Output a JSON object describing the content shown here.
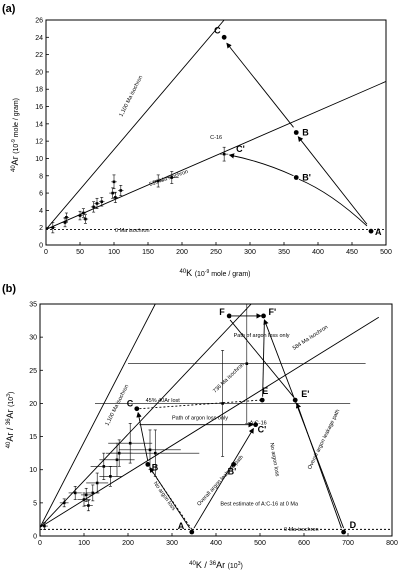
{
  "chart_data": [
    {
      "panel": "(a)",
      "type": "scatter",
      "xlabel_sup": "40",
      "xlabel_main": "K",
      "xlabel_unit": "(10",
      "xlabel_unit_sup": "-9",
      "xlabel_unit_tail": " mole / gram)",
      "ylabel_sup": "40",
      "ylabel_main": "Ar",
      "ylabel_unit": "(10",
      "ylabel_unit_sup": "-9",
      "ylabel_unit_tail": " mole / gram)",
      "xlim": [
        0,
        500
      ],
      "ylim": [
        0,
        26
      ],
      "xticks": [
        0,
        50,
        100,
        150,
        200,
        250,
        300,
        350,
        400,
        450,
        500
      ],
      "yticks": [
        0,
        2,
        4,
        6,
        8,
        10,
        12,
        14,
        16,
        18,
        20,
        22,
        24,
        26
      ],
      "isochrons": [
        {
          "label": "1,100 Ma isochron",
          "x": [
            0,
            262
          ],
          "y": [
            1.8,
            26
          ]
        },
        {
          "label": "516 Ma isochron",
          "x": [
            0,
            500
          ],
          "y": [
            1.8,
            18.9
          ]
        },
        {
          "label": "0 Ma isochron",
          "x": [
            0,
            500
          ],
          "y": [
            1.8,
            1.8
          ]
        }
      ],
      "data_points": [
        {
          "x": 10,
          "y": 2.0,
          "ex": 4,
          "ey": 0.6
        },
        {
          "x": 28,
          "y": 2.6,
          "ex": 4,
          "ey": 0.5
        },
        {
          "x": 30,
          "y": 3.2,
          "ex": 4,
          "ey": 0.5
        },
        {
          "x": 50,
          "y": 3.4,
          "ex": 4,
          "ey": 0.5
        },
        {
          "x": 55,
          "y": 3.7,
          "ex": 4,
          "ey": 0.5
        },
        {
          "x": 58,
          "y": 3.0,
          "ex": 4,
          "ey": 0.5
        },
        {
          "x": 70,
          "y": 4.4,
          "ex": 4,
          "ey": 0.6
        },
        {
          "x": 75,
          "y": 4.8,
          "ex": 4,
          "ey": 0.6
        },
        {
          "x": 82,
          "y": 5.0,
          "ex": 4,
          "ey": 0.5
        },
        {
          "x": 98,
          "y": 6.0,
          "ex": 5,
          "ey": 0.6
        },
        {
          "x": 100,
          "y": 7.3,
          "ex": 4,
          "ey": 0.8
        },
        {
          "x": 102,
          "y": 5.5,
          "ex": 4,
          "ey": 0.6
        },
        {
          "x": 110,
          "y": 6.3,
          "ex": 4,
          "ey": 0.6
        },
        {
          "x": 165,
          "y": 7.4,
          "ex": 8,
          "ey": 0.7
        },
        {
          "x": 185,
          "y": 7.8,
          "ex": 10,
          "ey": 0.7
        },
        {
          "x": 262,
          "y": 10.5,
          "ex": 6,
          "ey": 0.8
        }
      ],
      "labeled_points": [
        {
          "label": "A",
          "x": 478,
          "y": 1.6
        },
        {
          "label": "B",
          "x": 368,
          "y": 13.0
        },
        {
          "label": "B'",
          "x": 368,
          "y": 7.8
        },
        {
          "label": "C",
          "x": 262,
          "y": 24.0
        },
        {
          "label": "C'",
          "x": 262,
          "y": 10.5
        },
        {
          "label": "C-16",
          "x": 262,
          "y": 11.8
        }
      ]
    },
    {
      "panel": "(b)",
      "type": "scatter",
      "xlabel_sup": "40",
      "xlabel_main": "K / ",
      "xlabel_sup2": "36",
      "xlabel_tail": "Ar",
      "xlabel_unit": "(10",
      "xlabel_unit_sup": "3",
      "xlabel_unit_tail": ")",
      "ylabel_sup": "40",
      "ylabel_main": "Ar / ",
      "ylabel_sup2": "36",
      "ylabel_tail": "Ar",
      "ylabel_unit": "(10",
      "ylabel_unit_sup": "3",
      "ylabel_unit_tail": ")",
      "xlim": [
        0,
        800
      ],
      "ylim": [
        0,
        35
      ],
      "xticks": [
        0,
        100,
        200,
        300,
        400,
        500,
        600,
        700,
        800
      ],
      "yticks": [
        0,
        5,
        10,
        15,
        20,
        25,
        30,
        35
      ],
      "isochrons": [
        {
          "label": "1,100 Ma isochron",
          "x": [
            0,
            262
          ],
          "y": [
            1.3,
            35
          ]
        },
        {
          "label": "736 Ma isochron",
          "x": [
            0,
            480
          ],
          "y": [
            1.3,
            35
          ]
        },
        {
          "label": "584 Ma isochron",
          "x": [
            0,
            770
          ],
          "y": [
            1.3,
            33
          ]
        },
        {
          "label": "0 Ma isochron",
          "x": [
            0,
            800
          ],
          "y": [
            1.0,
            1.0
          ]
        }
      ],
      "data_points": [
        {
          "x": 10,
          "y": 1.5,
          "ex": 8,
          "ey": 0.5
        },
        {
          "x": 55,
          "y": 5.0,
          "ex": 10,
          "ey": 0.6
        },
        {
          "x": 80,
          "y": 6.5,
          "ex": 15,
          "ey": 1.0
        },
        {
          "x": 100,
          "y": 5.5,
          "ex": 15,
          "ey": 1.0
        },
        {
          "x": 105,
          "y": 6.2,
          "ex": 12,
          "ey": 1.0
        },
        {
          "x": 110,
          "y": 4.6,
          "ex": 10,
          "ey": 0.8
        },
        {
          "x": 120,
          "y": 6.5,
          "ex": 15,
          "ey": 1.2
        },
        {
          "x": 130,
          "y": 8.0,
          "ex": 25,
          "ey": 1.5
        },
        {
          "x": 145,
          "y": 10.5,
          "ex": 30,
          "ey": 2.0
        },
        {
          "x": 160,
          "y": 9.0,
          "ex": 25,
          "ey": 1.5
        },
        {
          "x": 175,
          "y": 11.5,
          "ex": 40,
          "ey": 2.5
        },
        {
          "x": 180,
          "y": 12.5,
          "ex": 30,
          "ey": 2.0
        },
        {
          "x": 205,
          "y": 14.0,
          "ex": 50,
          "ey": 3.0
        },
        {
          "x": 250,
          "y": 13.0,
          "ex": 70,
          "ey": 3.0
        },
        {
          "x": 262,
          "y": 12.5,
          "ex": 100,
          "ey": 3.5
        },
        {
          "x": 415,
          "y": 20.0,
          "ex": 290,
          "ey": 8.0
        },
        {
          "x": 470,
          "y": 26.0,
          "ex": 270,
          "ey": 9.0
        }
      ],
      "labeled_points": [
        {
          "label": "A",
          "x": 345,
          "y": 0.6
        },
        {
          "label": "B",
          "x": 245,
          "y": 10.8
        },
        {
          "label": "B'",
          "x": 440,
          "y": 10.8
        },
        {
          "label": "C",
          "x": 220,
          "y": 19.2
        },
        {
          "label": "C'",
          "x": 490,
          "y": 16.8
        },
        {
          "label": "D",
          "x": 690,
          "y": 0.6
        },
        {
          "label": "E",
          "x": 505,
          "y": 20.5
        },
        {
          "label": "E'",
          "x": 580,
          "y": 20.5
        },
        {
          "label": "F",
          "x": 430,
          "y": 33.2
        },
        {
          "label": "F'",
          "x": 508,
          "y": 33.2
        },
        {
          "label": "A:C-16",
          "x": 490,
          "y": 18.0
        }
      ],
      "annotations": [
        "45% 40Ar lost",
        "Path of argon loss only",
        "Path of argon loss only",
        "Overall argon leakage path",
        "Overall argon leakage path",
        "No argon loss",
        "No argon loss",
        "Best estimate of A:C-16 at 0 Ma"
      ]
    }
  ]
}
